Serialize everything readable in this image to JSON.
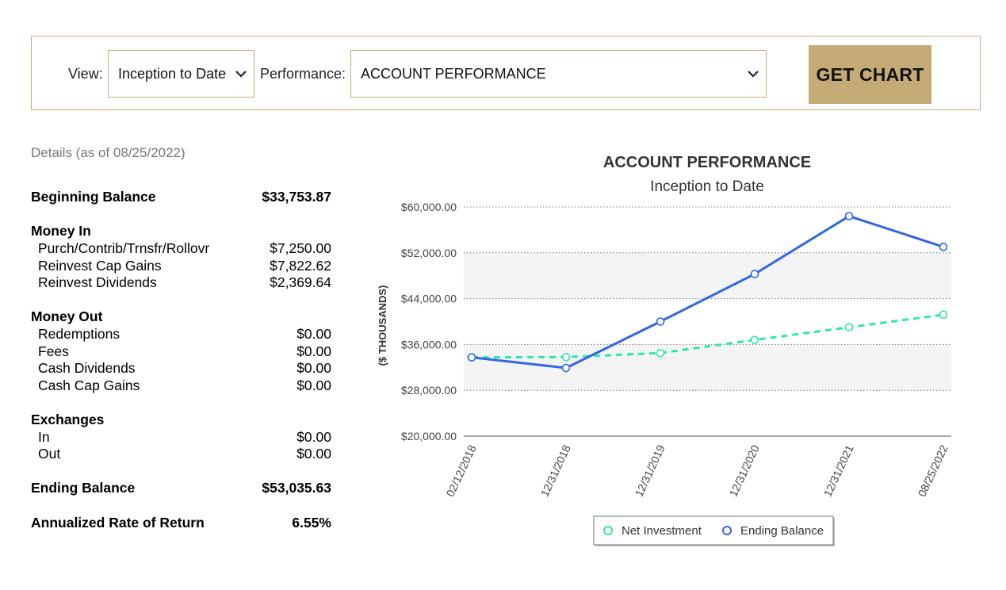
{
  "filters": {
    "view_label": "View:",
    "view_value": "Inception to Date",
    "performance_label": "Performance:",
    "performance_value": "ACCOUNT PERFORMANCE",
    "button_label": "GET CHART"
  },
  "details": {
    "title": "Details (as of 08/25/2022)",
    "beginning_balance": {
      "label": "Beginning Balance",
      "value": "$33,753.87"
    },
    "money_in": {
      "header": "Money In",
      "items": [
        {
          "label": "Purch/Contrib/Trnsfr/Rollovr",
          "value": "$7,250.00"
        },
        {
          "label": "Reinvest Cap Gains",
          "value": "$7,822.62"
        },
        {
          "label": "Reinvest Dividends",
          "value": "$2,369.64"
        }
      ]
    },
    "money_out": {
      "header": "Money Out",
      "items": [
        {
          "label": "Redemptions",
          "value": "$0.00"
        },
        {
          "label": "Fees",
          "value": "$0.00"
        },
        {
          "label": "Cash Dividends",
          "value": "$0.00"
        },
        {
          "label": "Cash Cap Gains",
          "value": "$0.00"
        }
      ]
    },
    "exchanges": {
      "header": "Exchanges",
      "items": [
        {
          "label": "In",
          "value": "$0.00"
        },
        {
          "label": "Out",
          "value": "$0.00"
        }
      ]
    },
    "ending_balance": {
      "label": "Ending Balance",
      "value": "$53,035.63"
    },
    "annualized_return": {
      "label": "Annualized Rate of Return",
      "value": "6.55%"
    }
  },
  "chart_data": {
    "type": "line",
    "title": "ACCOUNT PERFORMANCE",
    "subtitle": "Inception to Date",
    "ylabel": "($ THOUSANDS)",
    "xlabel": "",
    "ylim": [
      20000,
      60000
    ],
    "yticks": [
      20000,
      28000,
      36000,
      44000,
      52000,
      60000
    ],
    "ytick_labels": [
      "$20,000.00",
      "$28,000.00",
      "$36,000.00",
      "$44,000.00",
      "$52,000.00",
      "$60,000.00"
    ],
    "categories": [
      "02/12/2018",
      "12/31/2018",
      "12/31/2019",
      "12/31/2020",
      "12/31/2021",
      "08/25/2022"
    ],
    "grid": true,
    "legend_position": "bottom",
    "series": [
      {
        "name": "Net Investment",
        "color": "#2ee6b0",
        "dash": true,
        "values": [
          33754,
          33800,
          34500,
          36800,
          39000,
          41200
        ]
      },
      {
        "name": "Ending Balance",
        "color": "#3366e6",
        "dash": false,
        "values": [
          33754,
          31900,
          40000,
          48300,
          58400,
          53036
        ]
      }
    ]
  }
}
